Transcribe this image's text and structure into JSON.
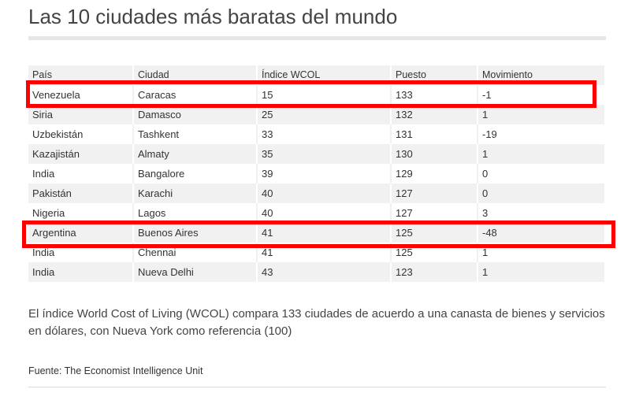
{
  "title": "Las 10 ciudades más baratas del mundo",
  "table": {
    "headers": [
      "País",
      "Ciudad",
      "Índice WCOL",
      "Puesto",
      "Movimiento"
    ],
    "rows": [
      [
        "Venezuela",
        "Caracas",
        "15",
        "133",
        "-1"
      ],
      [
        "Siria",
        "Damasco",
        "25",
        "132",
        "1"
      ],
      [
        "Uzbekistán",
        "Tashkent",
        "33",
        "131",
        "-19"
      ],
      [
        "Kazajistán",
        "Almaty",
        "35",
        "130",
        "1"
      ],
      [
        "India",
        "Bangalore",
        "39",
        "129",
        "0"
      ],
      [
        "Pakistán",
        "Karachi",
        "40",
        "127",
        "0"
      ],
      [
        "Nigeria",
        "Lagos",
        "40",
        "127",
        "3"
      ],
      [
        "Argentina",
        "Buenos Aires",
        "41",
        "125",
        "-48"
      ],
      [
        "India",
        "Chennai",
        "41",
        "125",
        "1"
      ],
      [
        "India",
        "Nueva Delhi",
        "43",
        "123",
        "1"
      ]
    ]
  },
  "description": "El índice World Cost of Living (WCOL) compara 133 ciudades de acuerdo a una canasta de bienes y servicios en dólares, con Nueva York como referencia (100)",
  "source": "Fuente: The Economist Intelligence Unit",
  "highlight_color": "#ff0000"
}
